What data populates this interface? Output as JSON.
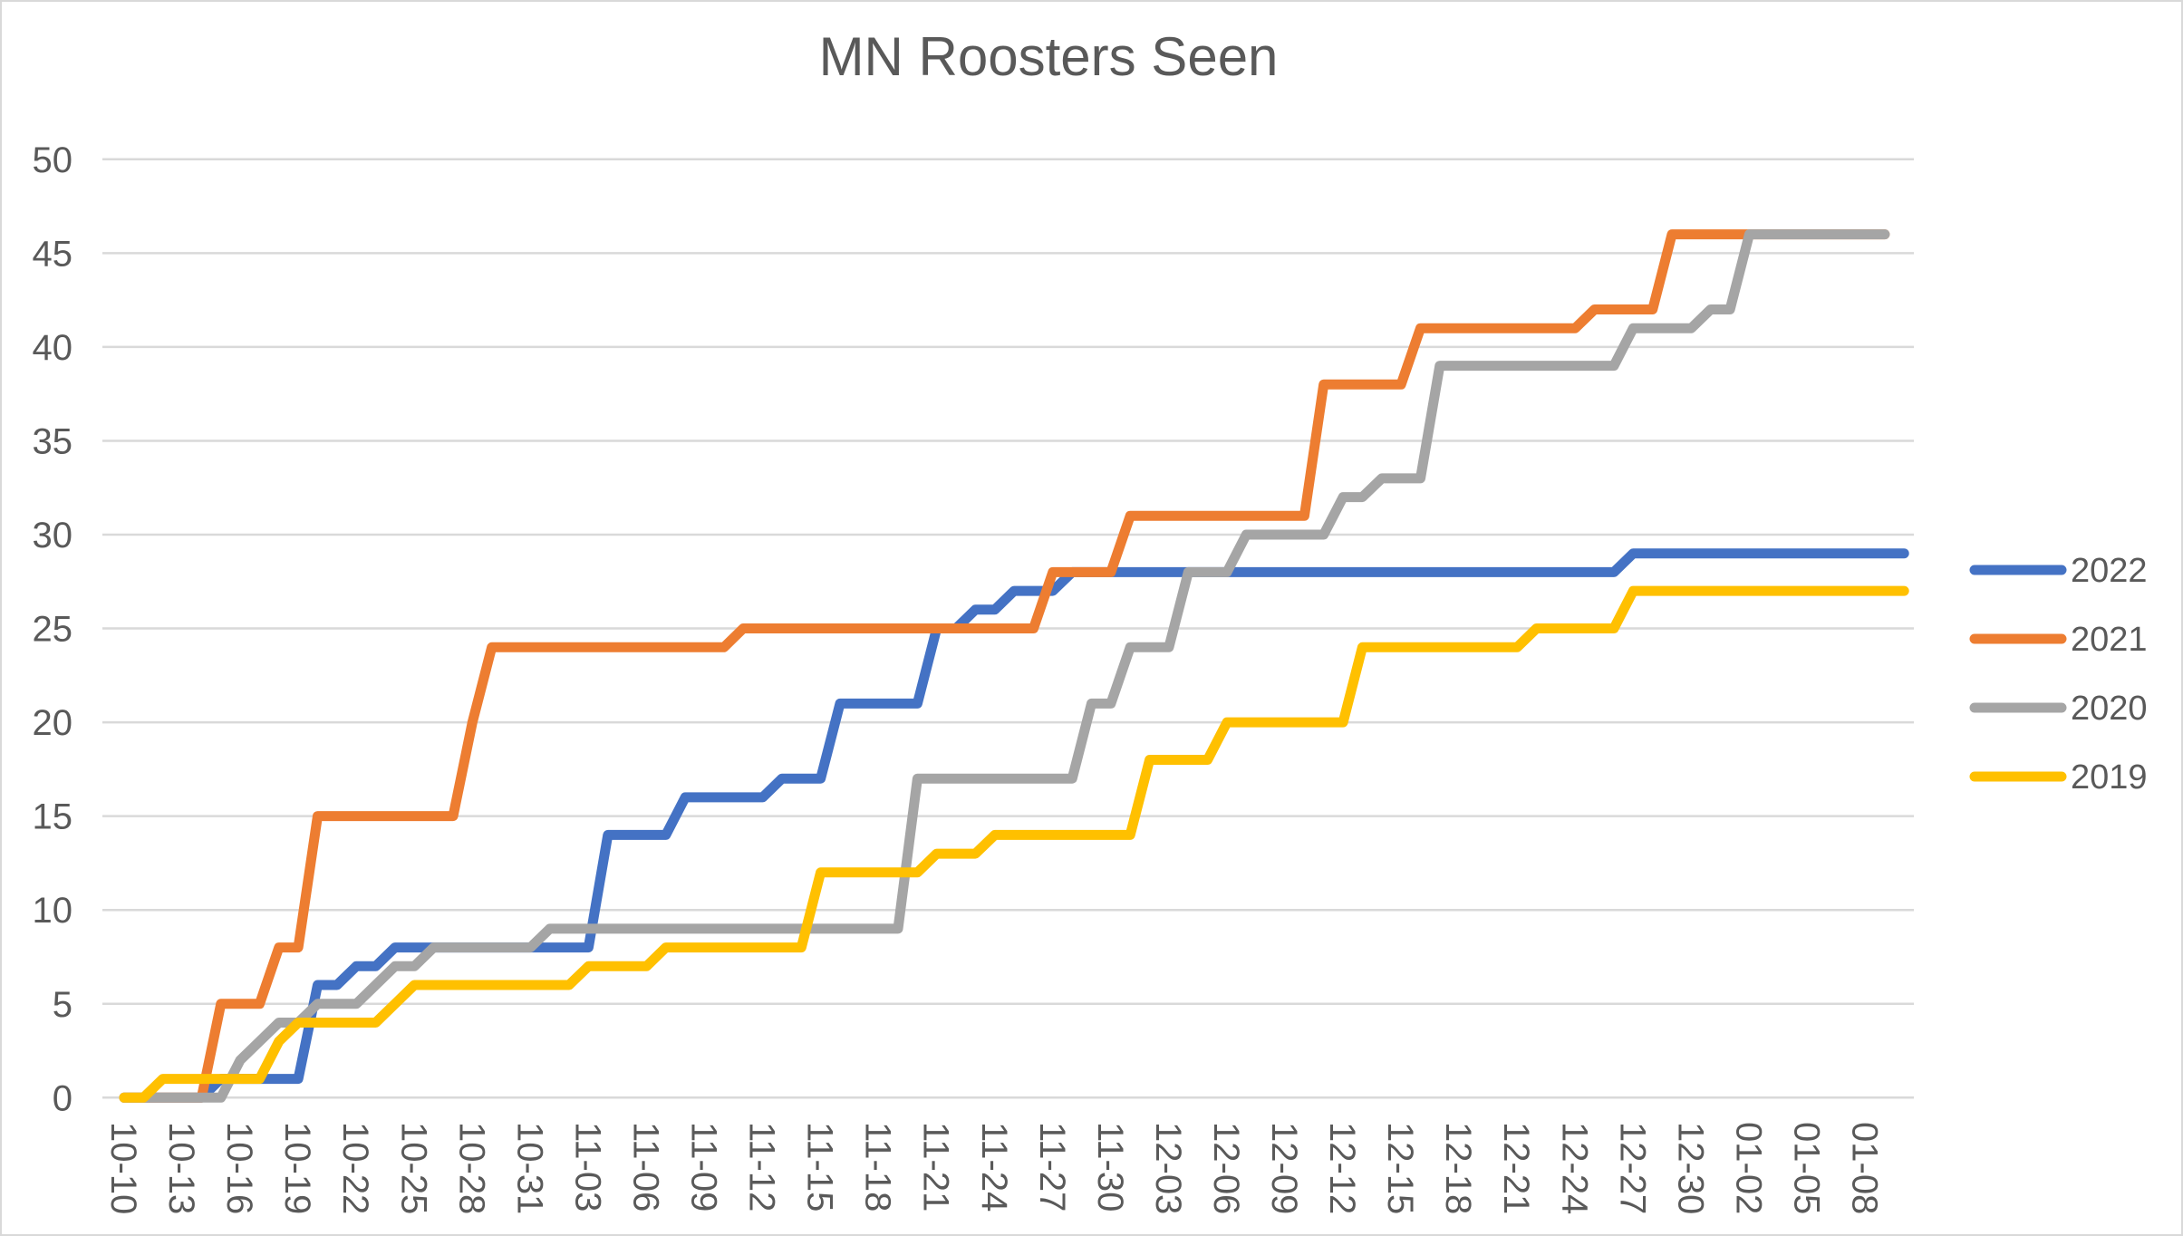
{
  "window": {
    "title": "MN Roosters Seen"
  },
  "colors": {
    "background": "#ffffff",
    "gridline": "#d9d9d9",
    "axis_text": "#595959",
    "title_text": "#595959",
    "series_2022": "#4472c4",
    "series_2021": "#ed7d31",
    "series_2020": "#a5a5a5",
    "series_2019": "#ffc000"
  },
  "chart_data": {
    "type": "line",
    "title": "MN Roosters Seen",
    "xlabel": "",
    "ylabel": "",
    "ylim": [
      0,
      50
    ],
    "y_ticks": [
      0,
      5,
      10,
      15,
      20,
      25,
      30,
      35,
      40,
      45,
      50
    ],
    "grid": "horizontal",
    "legend_position": "right",
    "x_start_date": "10-10",
    "x_cadence": "daily",
    "x_tick_every_days": 3,
    "x_labels": [
      "10-10",
      "10-13",
      "10-16",
      "10-19",
      "10-22",
      "10-25",
      "10-28",
      "10-31",
      "11-03",
      "11-06",
      "11-09",
      "11-12",
      "11-15",
      "11-18",
      "11-21",
      "11-24",
      "11-27",
      "11-30",
      "12-03",
      "12-06",
      "12-09",
      "12-12",
      "12-15",
      "12-18",
      "12-21",
      "12-24",
      "12-27",
      "12-30",
      "01-02",
      "01-05",
      "01-08"
    ],
    "series": [
      {
        "name": "2022",
        "color": "#4472c4",
        "values": [
          0,
          0,
          0,
          0,
          0,
          1,
          1,
          1,
          1,
          1,
          6,
          6,
          7,
          7,
          8,
          8,
          8,
          8,
          8,
          8,
          8,
          8,
          8,
          8,
          8,
          14,
          14,
          14,
          14,
          16,
          16,
          16,
          16,
          16,
          17,
          17,
          17,
          21,
          21,
          21,
          21,
          21,
          25,
          25,
          26,
          26,
          27,
          27,
          27,
          28,
          28,
          28,
          28,
          28,
          28,
          28,
          28,
          28,
          28,
          28,
          28,
          28,
          28,
          28,
          28,
          28,
          28,
          28,
          28,
          28,
          28,
          28,
          28,
          28,
          28,
          28,
          28,
          28,
          29,
          29,
          29,
          29,
          29,
          29,
          29,
          29,
          29,
          29,
          29,
          29,
          29,
          29,
          29
        ]
      },
      {
        "name": "2021",
        "color": "#ed7d31",
        "values": [
          0,
          0,
          0,
          0,
          0,
          5,
          5,
          5,
          8,
          8,
          15,
          15,
          15,
          15,
          15,
          15,
          15,
          15,
          20,
          24,
          24,
          24,
          24,
          24,
          24,
          24,
          24,
          24,
          24,
          24,
          24,
          24,
          25,
          25,
          25,
          25,
          25,
          25,
          25,
          25,
          25,
          25,
          25,
          25,
          25,
          25,
          25,
          25,
          28,
          28,
          28,
          28,
          31,
          31,
          31,
          31,
          31,
          31,
          31,
          31,
          31,
          31,
          38,
          38,
          38,
          38,
          38,
          41,
          41,
          41,
          41,
          41,
          41,
          41,
          41,
          41,
          42,
          42,
          42,
          42,
          46,
          46,
          46,
          46,
          46,
          46,
          46,
          46,
          46,
          46,
          46,
          46
        ]
      },
      {
        "name": "2020",
        "color": "#a5a5a5",
        "values": [
          0,
          0,
          0,
          0,
          0,
          0,
          2,
          3,
          4,
          4,
          5,
          5,
          5,
          6,
          7,
          7,
          8,
          8,
          8,
          8,
          8,
          8,
          9,
          9,
          9,
          9,
          9,
          9,
          9,
          9,
          9,
          9,
          9,
          9,
          9,
          9,
          9,
          9,
          9,
          9,
          9,
          17,
          17,
          17,
          17,
          17,
          17,
          17,
          17,
          17,
          21,
          21,
          24,
          24,
          24,
          28,
          28,
          28,
          30,
          30,
          30,
          30,
          30,
          32,
          32,
          33,
          33,
          33,
          39,
          39,
          39,
          39,
          39,
          39,
          39,
          39,
          39,
          39,
          41,
          41,
          41,
          41,
          42,
          42,
          46,
          46,
          46,
          46,
          46,
          46,
          46,
          46
        ]
      },
      {
        "name": "2019",
        "color": "#ffc000",
        "values": [
          0,
          0,
          1,
          1,
          1,
          1,
          1,
          1,
          3,
          4,
          4,
          4,
          4,
          4,
          5,
          6,
          6,
          6,
          6,
          6,
          6,
          6,
          6,
          6,
          7,
          7,
          7,
          7,
          8,
          8,
          8,
          8,
          8,
          8,
          8,
          8,
          12,
          12,
          12,
          12,
          12,
          12,
          13,
          13,
          13,
          14,
          14,
          14,
          14,
          14,
          14,
          14,
          14,
          18,
          18,
          18,
          18,
          20,
          20,
          20,
          20,
          20,
          20,
          20,
          24,
          24,
          24,
          24,
          24,
          24,
          24,
          24,
          24,
          25,
          25,
          25,
          25,
          25,
          27,
          27,
          27,
          27,
          27,
          27,
          27,
          27,
          27,
          27,
          27,
          27,
          27,
          27,
          27
        ]
      }
    ]
  },
  "legend": {
    "items": [
      {
        "label": "2022",
        "color": "#4472c4"
      },
      {
        "label": "2021",
        "color": "#ed7d31"
      },
      {
        "label": "2020",
        "color": "#a5a5a5"
      },
      {
        "label": "2019",
        "color": "#ffc000"
      }
    ]
  }
}
